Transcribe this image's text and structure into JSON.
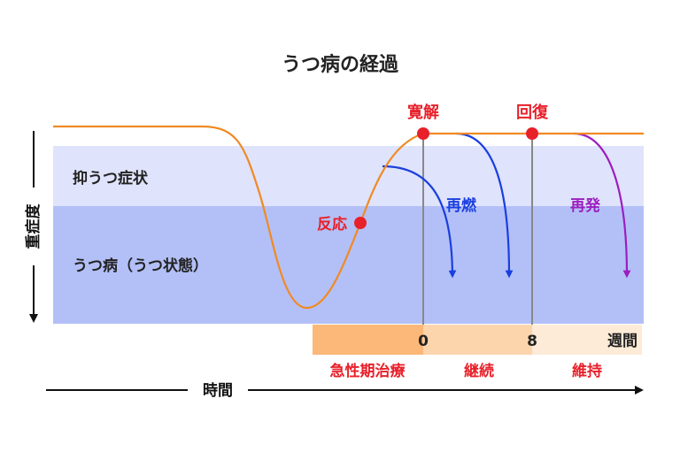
{
  "title": "うつ病の経過",
  "y_axis_label": "重症度",
  "x_axis_label": "時間",
  "bands": {
    "mild_label": "抑うつ症状",
    "severe_label": "うつ病（うつ状態）"
  },
  "points": {
    "response": "反応",
    "remission": "寛解",
    "recovery": "回復"
  },
  "outcomes": {
    "relapse": "再燃",
    "recurrence": "再発"
  },
  "week_ticks": {
    "w0": "0",
    "w8": "8",
    "unit": "週間"
  },
  "phases": {
    "acute": "急性期治療",
    "continuation": "継続",
    "maintenance": "維持"
  },
  "colors": {
    "curve": "#f08a24",
    "marker": "#e8202a",
    "mild_band": "#dfe3fb",
    "severe_band": "#b3c0f7",
    "relapse_arrow": "#1a3fe0",
    "recurrence_arrow": "#9b1fbf",
    "acute_phase": "#fbb878",
    "continuation_phase": "#fcd5ad",
    "maintenance_phase": "#fdebd7",
    "accent_text": "#e8202a",
    "relapse_text": "#1a3fe0",
    "recurrence_text": "#9b1fbf"
  }
}
